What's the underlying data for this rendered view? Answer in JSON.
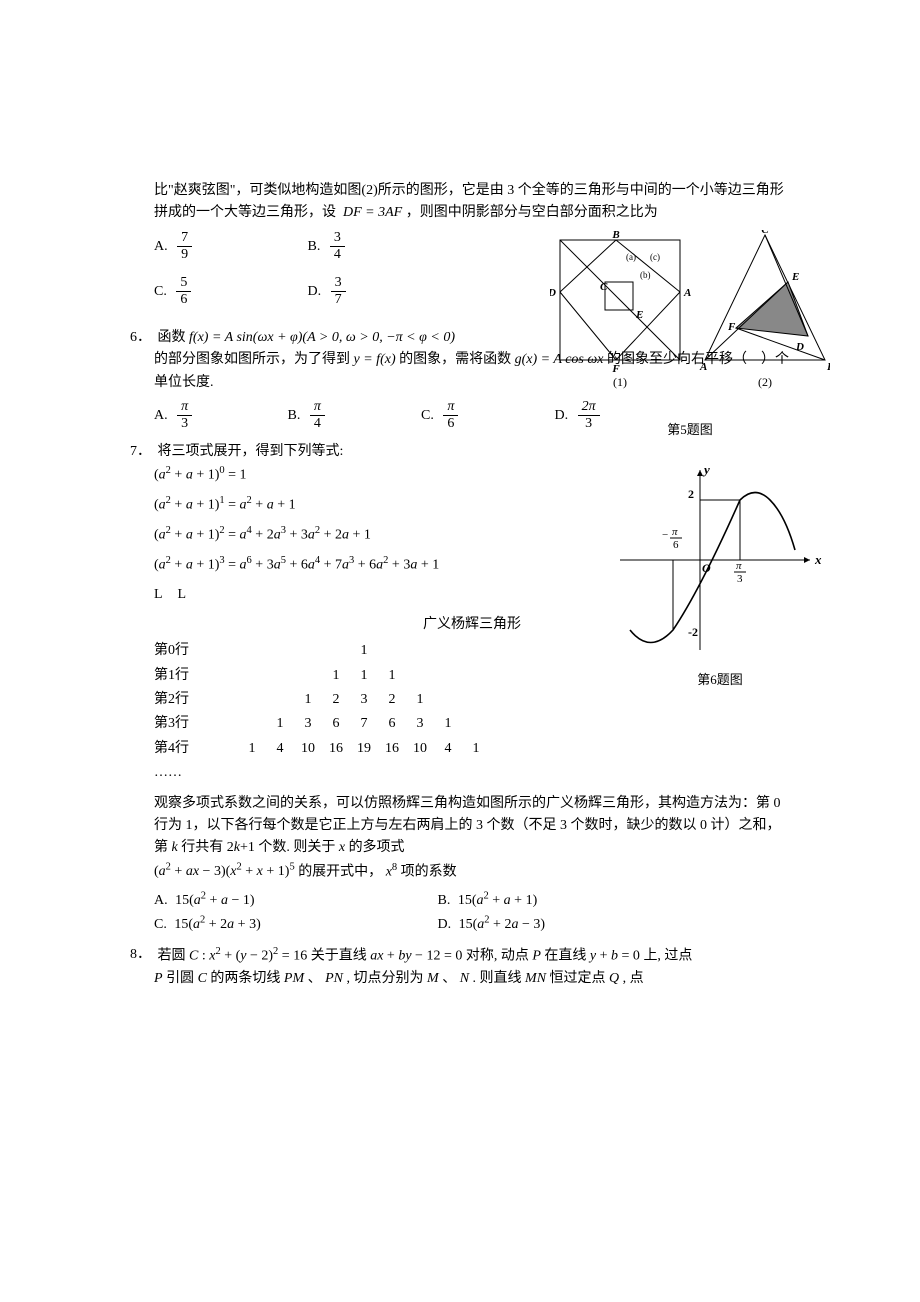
{
  "q5": {
    "intro": "比\"赵爽弦图\"，可类似地构造如图(2)所示的图形，它是由 3 个全等的三角形与中间的一个小等边三角形拼成的一个大等边三角形，设",
    "condition": "DF = 3AF",
    "cont": "，则图中阴影部分与空白部分面积之比为",
    "options": {
      "A": {
        "num": "7",
        "den": "9"
      },
      "B": {
        "num": "3",
        "den": "4"
      },
      "C": {
        "num": "5",
        "den": "6"
      },
      "D": {
        "num": "3",
        "den": "7"
      }
    },
    "fig_caption": "第5题图",
    "fig_labels_1": [
      "B",
      "A",
      "C",
      "D",
      "E",
      "F",
      "(a)",
      "(b)",
      "(c)"
    ],
    "fig_labels_2": [
      "A",
      "B",
      "C",
      "D",
      "E",
      "F"
    ],
    "sub_captions": [
      "(1)",
      "(2)"
    ]
  },
  "q6": {
    "text_1": "函数",
    "func_def": "f(x) = A sin(ωx + φ)(A > 0, ω > 0, −π < φ < 0)",
    "text_2": "的部分图象如图所示，为了得到",
    "target_func": "y = f(x)",
    "text_3": "的图象，需将函数",
    "g_def": "g(x) = A cos ωx",
    "text_4": "的图象至少向右平移（　）个单位长度.",
    "options": {
      "A": {
        "num": "π",
        "den": "3"
      },
      "B": {
        "num": "π",
        "den": "4"
      },
      "C": {
        "num": "π",
        "den": "6"
      },
      "D": {
        "num": "2π",
        "den": "3"
      }
    },
    "fig_caption": "第6题图",
    "axis_labels": {
      "x": "x",
      "y": "y",
      "ymax": "2",
      "ymin": "-2",
      "xtick1": "−π/6",
      "xtick2": "π/3",
      "origin": "O"
    }
  },
  "q7": {
    "intro": "将三项式展开，得到下列等式:",
    "eqs": [
      "(a² + a + 1)⁰ = 1",
      "(a² + a + 1)¹ = a² + a + 1",
      "(a² + a + 1)² = a⁴ + 2a³ + 3a² + 2a + 1",
      "(a² + a + 1)³ = a⁶ + 3a⁵ + 6a⁴ + 7a³ + 6a² + 3a + 1"
    ],
    "ldots": "L  L",
    "pascal_title": "广义杨辉三角形",
    "pascal_rows": [
      {
        "label": "第0行",
        "nums": [
          "1"
        ]
      },
      {
        "label": "第1行",
        "nums": [
          "1",
          "1",
          "1"
        ]
      },
      {
        "label": "第2行",
        "nums": [
          "1",
          "2",
          "3",
          "2",
          "1"
        ]
      },
      {
        "label": "第3行",
        "nums": [
          "1",
          "3",
          "6",
          "7",
          "6",
          "3",
          "1"
        ]
      },
      {
        "label": "第4行",
        "nums": [
          "1",
          "4",
          "10",
          "16",
          "19",
          "16",
          "10",
          "4",
          "1"
        ]
      }
    ],
    "ellipsis": "……",
    "para": "观察多项式系数之间的关系，可以仿照杨辉三角构造如图所示的广义杨辉三角形，其构造方法为：第 0 行为 1，以下各行每个数是它正上方与左右两肩上的 3 个数（不足 3 个数时，缺少的数以 0 计）之和，第",
    "para_k": "k",
    "para_2": "行共有",
    "para_2k1": "2k+1",
    "para_3": "个数. 则关于",
    "para_x": "x",
    "para_4": "的多项式",
    "poly": "(a² + ax − 3)(x² + x + 1)⁵",
    "para_5": "的展开式中，",
    "term": "x⁸",
    "para_6": "项的系数",
    "options": {
      "A": "15(a² + a − 1)",
      "B": "15(a² + a + 1)",
      "C": "15(a² + 2a + 3)",
      "D": "15(a² + 2a − 3)"
    }
  },
  "q8": {
    "text_1": "若圆",
    "circle": "C : x² + (y − 2)² = 16",
    "text_2": "关于直线",
    "line": "ax + by − 12 = 0",
    "text_3": "对称, 动点",
    "pt_P": "P",
    "text_4": "在直线",
    "line2": "y + b = 0",
    "text_5": "上, 过点",
    "pt_P2": "P",
    "text_6": "引圆",
    "circ_C": "C",
    "text_7": "的两条切线",
    "tan1": "PM",
    "tan2": "PN",
    "text_8": ", 切点分别为",
    "pt_M": "M",
    "pt_N": "N",
    "text_9": ". 则直线",
    "line_MN": "MN",
    "text_10": "恒过定点",
    "pt_Q": "Q",
    "text_11": ", 点"
  }
}
